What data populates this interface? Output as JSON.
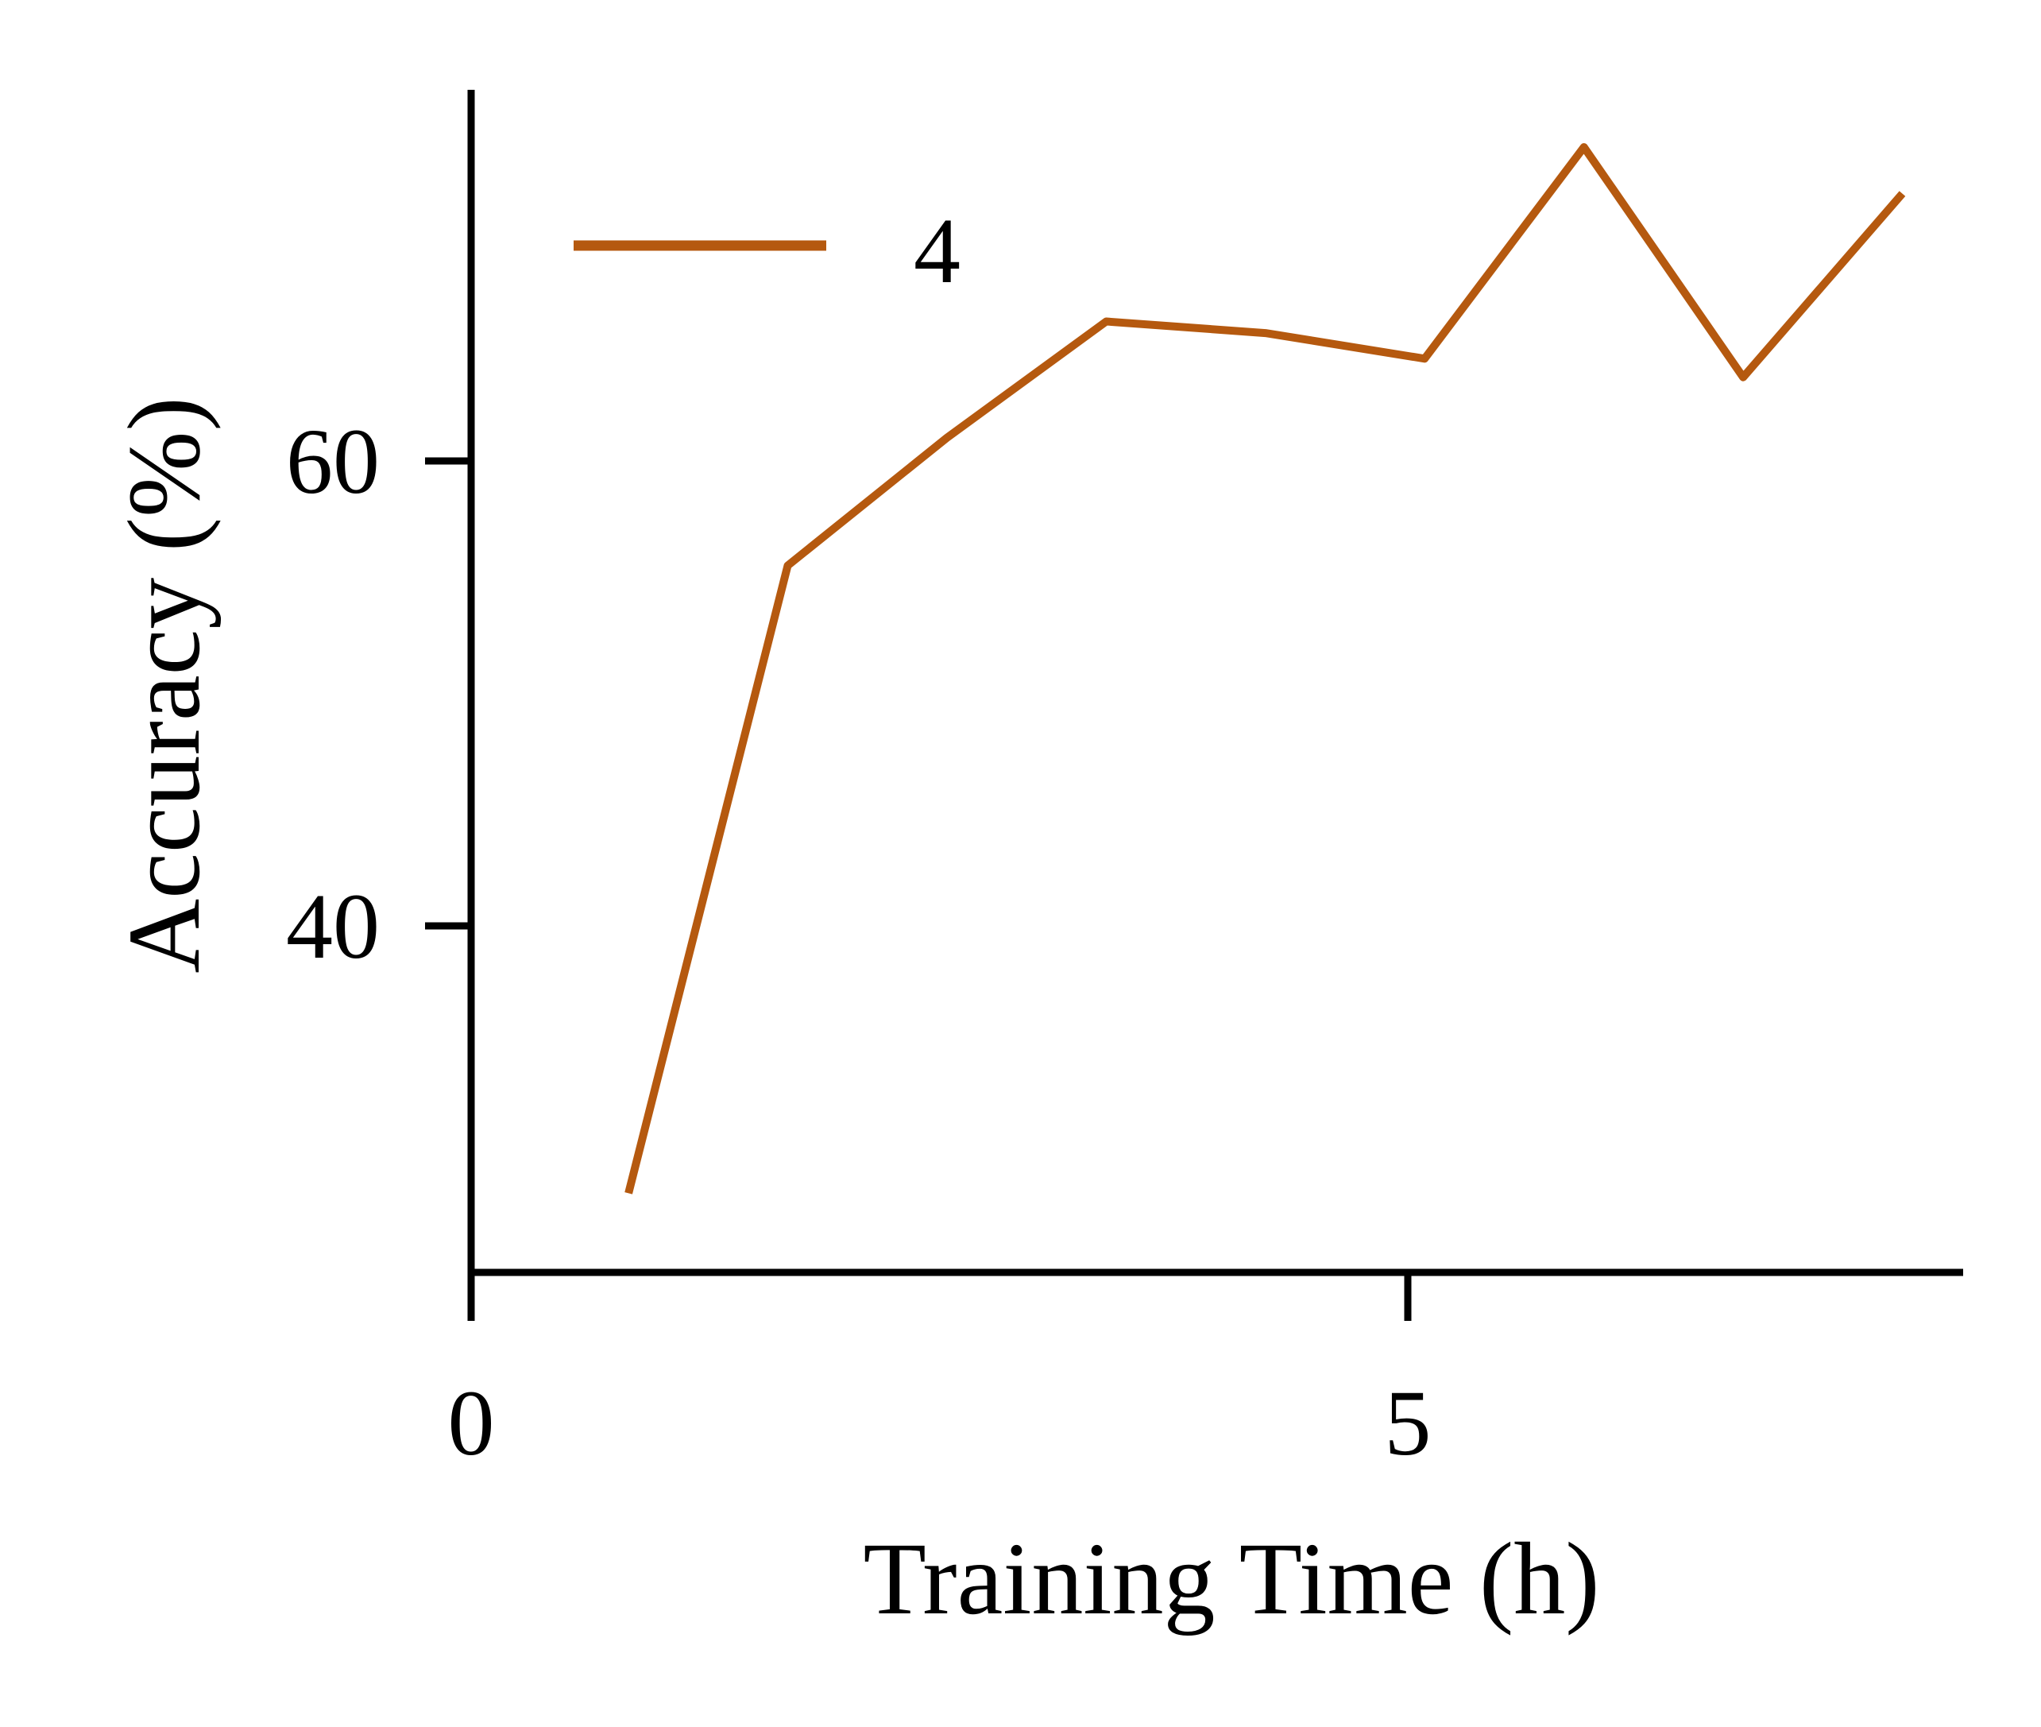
{
  "chart_data": {
    "type": "line",
    "title": "",
    "xlabel": "Training Time (h)",
    "ylabel": "Accuracy (%)",
    "xlim": [
      0,
      8
    ],
    "ylim": [
      26.5,
      77
    ],
    "x_ticks": [
      0,
      5
    ],
    "x_tick_labels": [
      "0",
      "5"
    ],
    "y_ticks": [
      40,
      60
    ],
    "y_tick_labels": [
      "40",
      "60"
    ],
    "grid": false,
    "legend": {
      "position": "top-left",
      "entries": [
        "4"
      ]
    },
    "series": [
      {
        "name": "4",
        "color": "#b5590f",
        "x": [
          0.84,
          1.69,
          2.54,
          3.39,
          4.24,
          5.09,
          5.94,
          6.79,
          7.64
        ],
        "y": [
          28.5,
          55.5,
          61.0,
          66.0,
          65.5,
          64.4,
          73.5,
          63.6,
          71.5
        ]
      }
    ]
  }
}
